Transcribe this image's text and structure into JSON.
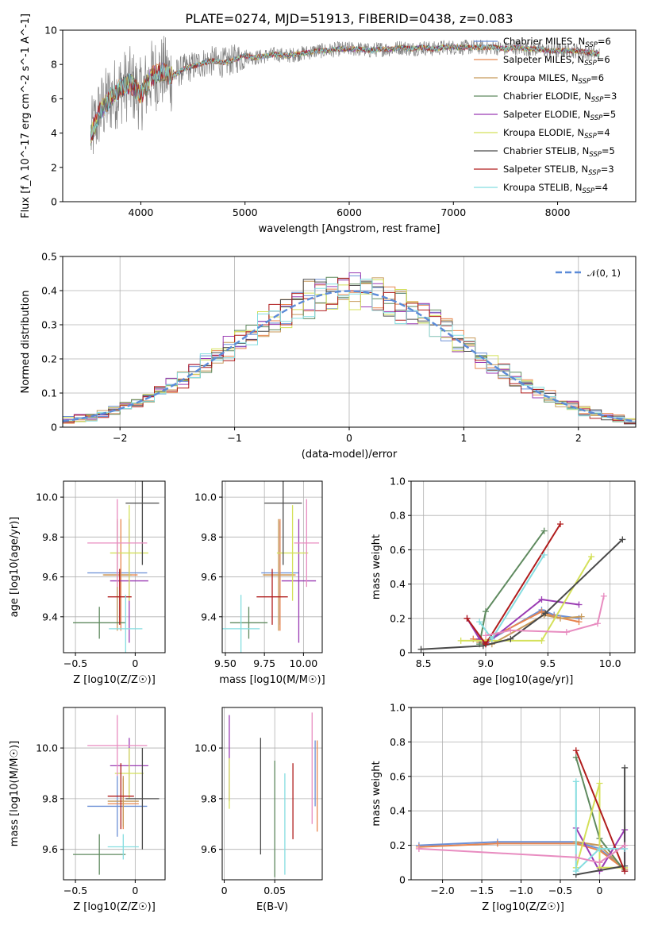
{
  "page": {
    "title": "PLATE=0274, MJD=51913, FIBERID=0438, z=0.083"
  },
  "models": [
    {
      "name": "Chabrier MILES",
      "nssp": "6",
      "color": "#6b8fd6"
    },
    {
      "name": "Salpeter MILES",
      "nssp": "6",
      "color": "#e8864f"
    },
    {
      "name": "Kroupa MILES",
      "nssp": "6",
      "color": "#c89a5a"
    },
    {
      "name": "Chabrier ELODIE",
      "nssp": "3",
      "color": "#5f8a5f"
    },
    {
      "name": "Salpeter ELODIE",
      "nssp": "5",
      "color": "#9a3bb3"
    },
    {
      "name": "Kroupa ELODIE",
      "nssp": "4",
      "color": "#d4e05a"
    },
    {
      "name": "Chabrier STELIB",
      "nssp": "5",
      "color": "#4a4a4a"
    },
    {
      "name": "Salpeter STELIB",
      "nssp": "3",
      "color": "#b01c1c"
    },
    {
      "name": "Kroupa STELIB",
      "nssp": "4",
      "color": "#85dde0"
    }
  ],
  "chart_data": [
    {
      "id": "spectrum",
      "type": "line",
      "xlabel": "wavelength [Angstrom, rest frame]",
      "ylabel": "Flux [f_λ 10^-17 erg cm^-2 s^-1 A^-1]",
      "xlim": [
        3250,
        8750
      ],
      "ylim": [
        0,
        10
      ],
      "xticks": [
        4000,
        5000,
        6000,
        7000,
        8000
      ],
      "yticks": [
        0,
        2,
        4,
        6,
        8,
        10
      ],
      "grid": false,
      "legend_position": "right",
      "data_color": "#808080",
      "data_x": [
        3520,
        3600,
        3700,
        3800,
        3900,
        4000,
        4100,
        4200,
        4300,
        4400,
        4500,
        4600,
        4700,
        4800,
        4900,
        5000,
        5100,
        5200,
        5300,
        5400,
        5500,
        5600,
        5700,
        5800,
        5900,
        6000,
        6100,
        6200,
        6300,
        6400,
        6500,
        6600,
        6700,
        6800,
        6900,
        7000,
        7100,
        7200,
        7300,
        7400,
        7500,
        7600,
        7700,
        7800,
        7900,
        8000,
        8100,
        8200,
        8300,
        8400
      ],
      "data_y": [
        3.8,
        5.2,
        6.0,
        6.6,
        6.9,
        6.2,
        7.3,
        7.6,
        7.3,
        7.7,
        7.9,
        8.1,
        8.2,
        8.1,
        8.3,
        8.5,
        8.4,
        8.5,
        8.6,
        8.5,
        8.6,
        8.7,
        8.8,
        8.8,
        8.9,
        8.9,
        8.9,
        8.8,
        8.9,
        8.9,
        9.0,
        8.9,
        9.0,
        8.9,
        9.0,
        9.0,
        9.0,
        9.0,
        9.0,
        9.0,
        8.9,
        9.0,
        8.9,
        8.9,
        8.8,
        8.8,
        8.8,
        8.8,
        8.7,
        8.6
      ]
    },
    {
      "id": "residual-histogram",
      "type": "line",
      "xlabel": "(data-model)/error",
      "ylabel": "Normed distribution",
      "xlim": [
        -2.5,
        2.5
      ],
      "ylim": [
        0,
        0.5
      ],
      "xticks": [
        -2,
        -1,
        0,
        1,
        2
      ],
      "yticks": [
        0.0,
        0.1,
        0.2,
        0.3,
        0.4,
        0.5
      ],
      "grid": true,
      "legend_position": "top-right",
      "gaussian_label": "𝒩(0, 1)",
      "gaussian_color": "#5b8bd8",
      "bin_width": 0.1
    },
    {
      "id": "age-vs-Z",
      "type": "scatter",
      "xlabel": "Z [log10(Z/Z☉)]",
      "ylabel": "age  [log10(age/yr)]",
      "xlim": [
        -0.6,
        0.25
      ],
      "ylim": [
        9.22,
        10.08
      ],
      "xticks": [
        -0.5,
        0.0
      ],
      "yticks": [
        9.4,
        9.6,
        9.8,
        10.0
      ],
      "grid": true,
      "errorbars": [
        {
          "x": -0.15,
          "xerr": 0.25,
          "y": 9.62,
          "yerr": 0.26,
          "model": 0
        },
        {
          "x": -0.12,
          "xerr": 0.14,
          "y": 9.61,
          "yerr": 0.28,
          "model": 1
        },
        {
          "x": -0.15,
          "xerr": 0.12,
          "y": 9.61,
          "yerr": 0.28,
          "model": 2
        },
        {
          "x": -0.3,
          "xerr": 0.22,
          "y": 9.37,
          "yerr": 0.08,
          "model": 3
        },
        {
          "x": -0.05,
          "xerr": 0.16,
          "y": 9.58,
          "yerr": 0.31,
          "model": 4
        },
        {
          "x": -0.05,
          "xerr": 0.16,
          "y": 9.72,
          "yerr": 0.24,
          "model": 5
        },
        {
          "x": 0.06,
          "xerr": 0.14,
          "y": 9.97,
          "yerr": 0.31,
          "model": 6
        },
        {
          "x": -0.13,
          "xerr": 0.1,
          "y": 9.5,
          "yerr": 0.14,
          "model": 7
        },
        {
          "x": -0.08,
          "xerr": 0.14,
          "y": 9.34,
          "yerr": 0.17,
          "model": 8
        },
        {
          "x": -0.15,
          "xerr": 0.25,
          "y": 9.77,
          "yerr": 0.22,
          "color": "#e88cc0"
        }
      ]
    },
    {
      "id": "age-vs-mass",
      "type": "scatter",
      "xlabel": "mass [log10(M/M☉)]",
      "ylabel": "",
      "xlim": [
        9.48,
        10.12
      ],
      "ylim": [
        9.22,
        10.08
      ],
      "xticks": [
        9.5,
        9.75,
        10.0
      ],
      "yticks": [
        9.4,
        9.6,
        9.8,
        10.0
      ],
      "grid": true,
      "errorbars": [
        {
          "x": 9.85,
          "xerr": 0.12,
          "y": 9.62,
          "yerr": 0.26,
          "model": 0
        },
        {
          "x": 9.85,
          "xerr": 0.1,
          "y": 9.61,
          "yerr": 0.28,
          "model": 1
        },
        {
          "x": 9.84,
          "xerr": 0.1,
          "y": 9.61,
          "yerr": 0.28,
          "model": 2
        },
        {
          "x": 9.65,
          "xerr": 0.12,
          "y": 9.37,
          "yerr": 0.08,
          "model": 3
        },
        {
          "x": 9.97,
          "xerr": 0.11,
          "y": 9.58,
          "yerr": 0.31,
          "model": 4
        },
        {
          "x": 9.93,
          "xerr": 0.1,
          "y": 9.72,
          "yerr": 0.24,
          "model": 5
        },
        {
          "x": 9.87,
          "xerr": 0.12,
          "y": 9.97,
          "yerr": 0.31,
          "model": 6
        },
        {
          "x": 9.8,
          "xerr": 0.1,
          "y": 9.5,
          "yerr": 0.14,
          "model": 7
        },
        {
          "x": 9.6,
          "xerr": 0.12,
          "y": 9.34,
          "yerr": 0.17,
          "model": 8
        },
        {
          "x": 10.02,
          "xerr": 0.08,
          "y": 9.77,
          "yerr": 0.22,
          "color": "#e88cc0"
        }
      ]
    },
    {
      "id": "massweight-vs-age",
      "type": "line",
      "xlabel": "age  [log10(age/yr)]",
      "ylabel": "mass weight",
      "xlim": [
        8.4,
        10.2
      ],
      "ylim": [
        0,
        1
      ],
      "xticks": [
        8.5,
        9.0,
        9.5,
        10.0
      ],
      "yticks": [
        0.0,
        0.2,
        0.4,
        0.6,
        0.8,
        1.0
      ],
      "grid": true,
      "series": [
        {
          "model": 0,
          "x": [
            8.9,
            9.0,
            9.45,
            9.55,
            9.75
          ],
          "y": [
            0.08,
            0.06,
            0.25,
            0.22,
            0.2
          ]
        },
        {
          "model": 1,
          "x": [
            8.9,
            9.0,
            9.45,
            9.55,
            9.75
          ],
          "y": [
            0.08,
            0.07,
            0.24,
            0.21,
            0.18
          ]
        },
        {
          "model": 2,
          "x": [
            8.95,
            9.05,
            9.47,
            9.6,
            9.77
          ],
          "y": [
            0.06,
            0.05,
            0.22,
            0.2,
            0.21
          ]
        },
        {
          "model": 3,
          "x": [
            8.95,
            9.0,
            9.47
          ],
          "y": [
            0.05,
            0.24,
            0.71
          ]
        },
        {
          "model": 4,
          "x": [
            8.85,
            8.95,
            9.0,
            9.45,
            9.75
          ],
          "y": [
            0.2,
            0.08,
            0.05,
            0.31,
            0.28
          ]
        },
        {
          "model": 5,
          "x": [
            8.8,
            9.0,
            9.45,
            9.85
          ],
          "y": [
            0.07,
            0.07,
            0.07,
            0.56
          ]
        },
        {
          "model": 6,
          "x": [
            8.48,
            8.98,
            9.2,
            9.48,
            10.1
          ],
          "y": [
            0.02,
            0.04,
            0.08,
            0.23,
            0.66
          ]
        },
        {
          "model": 7,
          "x": [
            8.85,
            9.0,
            9.6
          ],
          "y": [
            0.2,
            0.05,
            0.75
          ]
        },
        {
          "model": 8,
          "x": [
            8.95,
            9.05,
            9.47
          ],
          "y": [
            0.18,
            0.08,
            0.57
          ]
        },
        {
          "color": "#e88cc0",
          "x": [
            9.0,
            9.2,
            9.65,
            9.9,
            9.95
          ],
          "y": [
            0.1,
            0.13,
            0.12,
            0.17,
            0.33
          ]
        }
      ]
    },
    {
      "id": "mass-vs-Z",
      "type": "scatter",
      "xlabel": "Z [log10(Z/Z☉)]",
      "ylabel": "mass [log10(M/M☉)]",
      "xlim": [
        -0.6,
        0.25
      ],
      "ylim": [
        9.48,
        10.16
      ],
      "xticks": [
        -0.5,
        0.0
      ],
      "yticks": [
        9.6,
        9.8,
        10.0
      ],
      "grid": true,
      "errorbars": [
        {
          "x": -0.15,
          "xerr": 0.25,
          "y": 9.77,
          "yerr": 0.12,
          "model": 0
        },
        {
          "x": -0.1,
          "xerr": 0.13,
          "y": 9.78,
          "yerr": 0.1,
          "model": 1
        },
        {
          "x": -0.1,
          "xerr": 0.13,
          "y": 9.79,
          "yerr": 0.1,
          "model": 2
        },
        {
          "x": -0.3,
          "xerr": 0.22,
          "y": 9.58,
          "yerr": 0.08,
          "model": 3
        },
        {
          "x": -0.05,
          "xerr": 0.16,
          "y": 9.93,
          "yerr": 0.11,
          "model": 4
        },
        {
          "x": -0.05,
          "xerr": 0.12,
          "y": 9.9,
          "yerr": 0.1,
          "model": 5
        },
        {
          "x": 0.06,
          "xerr": 0.14,
          "y": 9.8,
          "yerr": 0.2,
          "model": 6
        },
        {
          "x": -0.12,
          "xerr": 0.11,
          "y": 9.81,
          "yerr": 0.13,
          "model": 7
        },
        {
          "x": -0.1,
          "xerr": 0.13,
          "y": 9.61,
          "yerr": 0.05,
          "model": 8
        },
        {
          "x": -0.15,
          "xerr": 0.25,
          "y": 10.01,
          "yerr": 0.12,
          "color": "#e88cc0"
        }
      ]
    },
    {
      "id": "mass-vs-EBV",
      "type": "scatter",
      "xlabel": "E(B-V)",
      "ylabel": "",
      "xlim": [
        -0.002,
        0.097
      ],
      "ylim": [
        9.48,
        10.16
      ],
      "xticks": [
        0.0,
        0.05
      ],
      "yticks": [
        9.6,
        9.8,
        10.0
      ],
      "grid": true,
      "errorbars": [
        {
          "x": 0.005,
          "xerr": 0,
          "y": 9.96,
          "yerr": 0.17,
          "model": 4
        },
        {
          "x": 0.005,
          "xerr": 0,
          "y": 9.86,
          "yerr": 0.1,
          "model": 5
        },
        {
          "x": 0.036,
          "xerr": 0,
          "y": 9.81,
          "yerr": 0.23,
          "model": 6
        },
        {
          "x": 0.05,
          "xerr": 0,
          "y": 9.72,
          "yerr": 0.23,
          "model": 3
        },
        {
          "x": 0.06,
          "xerr": 0,
          "y": 9.7,
          "yerr": 0.2,
          "model": 8
        },
        {
          "x": 0.068,
          "xerr": 0,
          "y": 9.79,
          "yerr": 0.15,
          "model": 7
        },
        {
          "x": 0.09,
          "xerr": 0,
          "y": 9.9,
          "yerr": 0.13,
          "model": 0
        },
        {
          "x": 0.092,
          "xerr": 0,
          "y": 9.85,
          "yerr": 0.18,
          "model": 1
        },
        {
          "x": 0.087,
          "xerr": 0,
          "y": 9.92,
          "yerr": 0.22,
          "color": "#e88cc0"
        }
      ]
    },
    {
      "id": "massweight-vs-Z",
      "type": "line",
      "xlabel": "Z [log10(Z/Z☉)]",
      "ylabel": "mass weight",
      "xlim": [
        -2.4,
        0.45
      ],
      "ylim": [
        0,
        1
      ],
      "xticks": [
        -2.0,
        -1.5,
        -1.0,
        -0.5,
        0.0
      ],
      "yticks": [
        0.0,
        0.2,
        0.4,
        0.6,
        0.8,
        1.0
      ],
      "grid": true,
      "series": [
        {
          "model": 0,
          "x": [
            -2.3,
            -1.3,
            -0.3,
            0.0,
            0.32
          ],
          "y": [
            0.2,
            0.22,
            0.22,
            0.18,
            0.06
          ]
        },
        {
          "model": 1,
          "x": [
            -2.3,
            -1.3,
            -0.3,
            0.0,
            0.32
          ],
          "y": [
            0.19,
            0.21,
            0.21,
            0.17,
            0.06
          ]
        },
        {
          "model": 2,
          "x": [
            -0.3,
            0.0,
            0.32
          ],
          "y": [
            0.22,
            0.2,
            0.06
          ]
        },
        {
          "model": 3,
          "x": [
            -0.3,
            0.0,
            0.32
          ],
          "y": [
            0.71,
            0.24,
            0.05
          ]
        },
        {
          "model": 4,
          "x": [
            -0.3,
            0.0,
            0.32,
            0.32
          ],
          "y": [
            0.3,
            0.05,
            0.29,
            0.05
          ]
        },
        {
          "model": 5,
          "x": [
            -0.3,
            0.0,
            0.0,
            0.32
          ],
          "y": [
            0.07,
            0.56,
            0.07,
            0.07
          ]
        },
        {
          "model": 6,
          "x": [
            -0.3,
            0.32,
            0.32
          ],
          "y": [
            0.03,
            0.08,
            0.65
          ]
        },
        {
          "model": 7,
          "x": [
            -0.3,
            0.32
          ],
          "y": [
            0.75,
            0.05
          ]
        },
        {
          "model": 8,
          "x": [
            -0.3,
            -0.3,
            0.0,
            0.32
          ],
          "y": [
            0.57,
            0.05,
            0.18,
            0.18
          ]
        },
        {
          "color": "#e88cc0",
          "x": [
            -2.3,
            -0.3,
            0.0,
            0.32
          ],
          "y": [
            0.18,
            0.13,
            0.1,
            0.2
          ]
        }
      ]
    }
  ]
}
